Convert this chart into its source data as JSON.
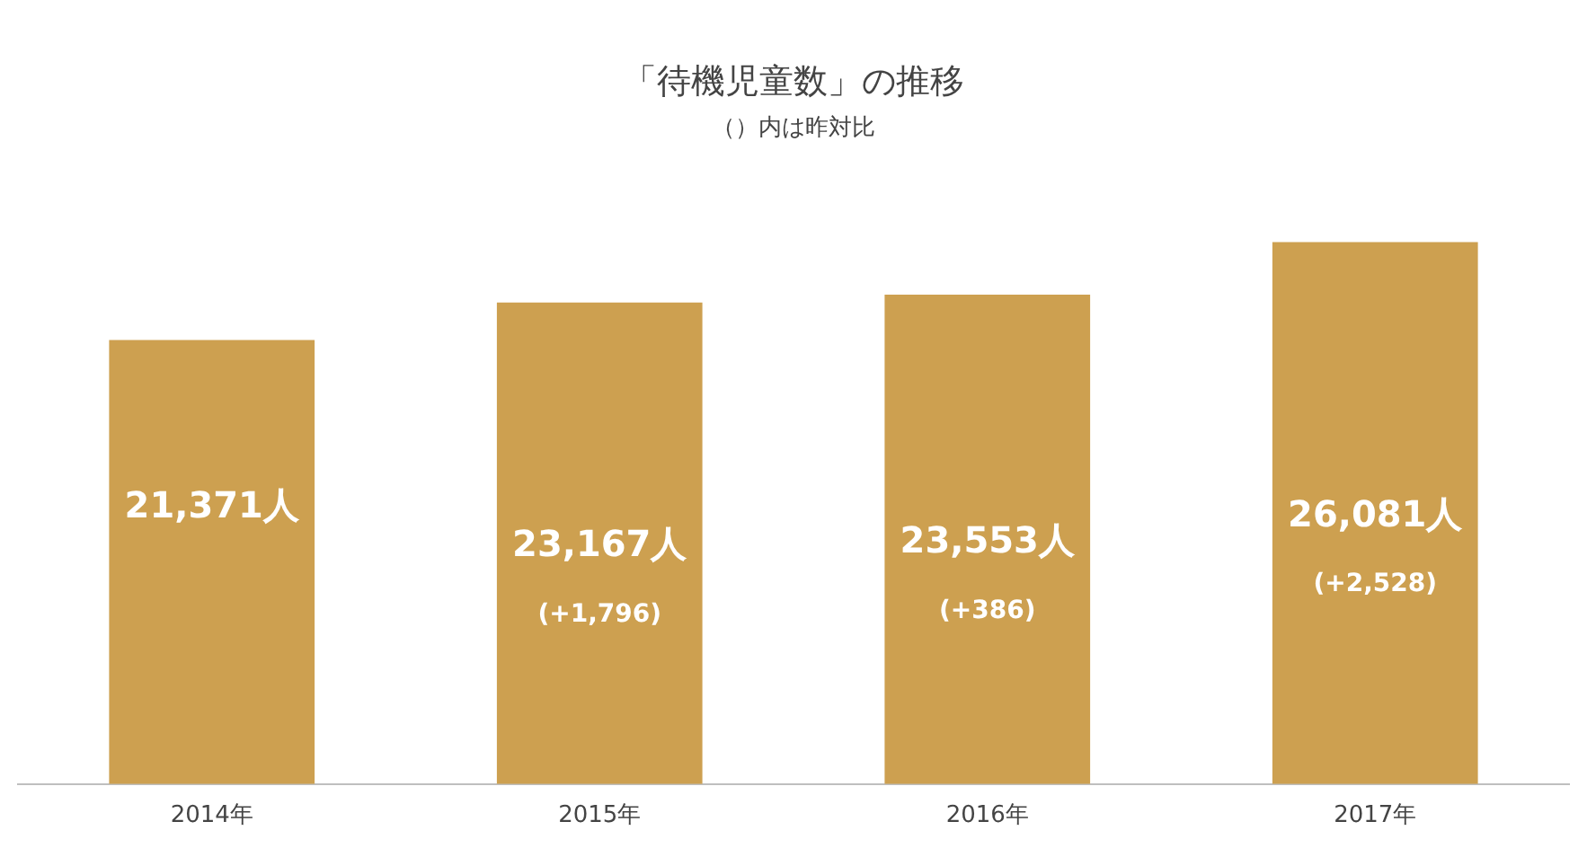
{
  "chart_data": {
    "type": "bar",
    "title": "「待機児童数」の推移",
    "subtitle": "（）内は昨対比",
    "categories": [
      "2014年",
      "2015年",
      "2016年",
      "2017年"
    ],
    "values": [
      21371,
      23167,
      23553,
      26081
    ],
    "color": "#cda050",
    "value_labels": [
      "21,371人",
      "23,167人",
      "23,553人",
      "26,081人"
    ],
    "annotations": [
      "(+1,796)",
      "(+386)",
      "(+2,528)"
    ],
    "grid": false,
    "legend": false
  }
}
